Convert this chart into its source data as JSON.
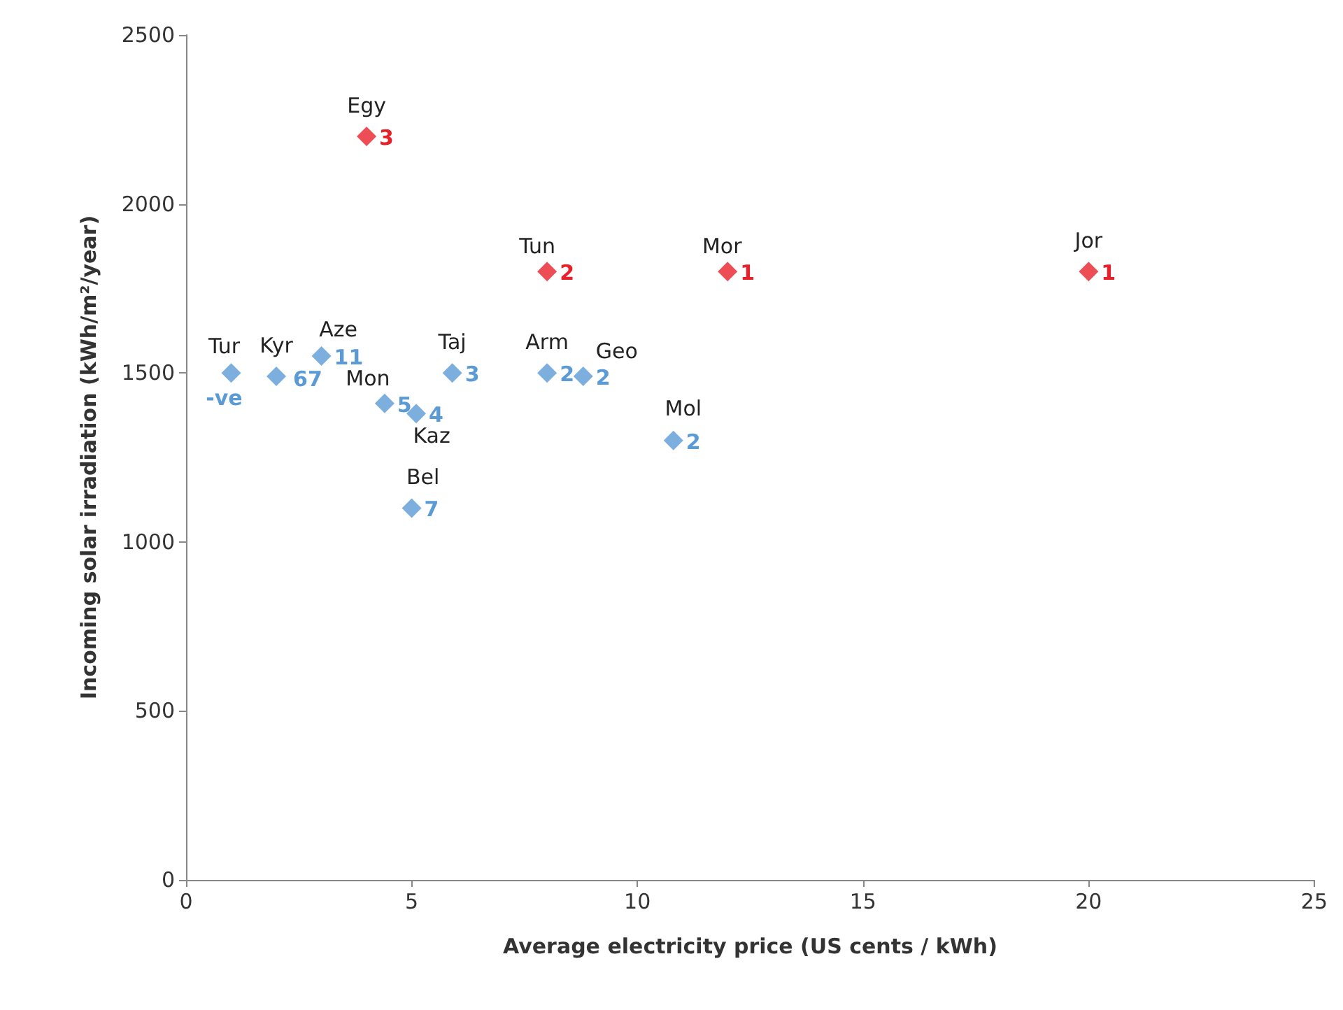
{
  "chart_data": {
    "type": "scatter",
    "xlabel": "Average electricity price (US cents / kWh)",
    "ylabel": "Incoming solar irradiation (kWh/m²/year)",
    "xlim": [
      0,
      25
    ],
    "xticks": [
      0,
      5,
      10,
      15,
      20,
      25
    ],
    "ylim": [
      0,
      2500
    ],
    "yticks": [
      0,
      500,
      1000,
      1500,
      2000,
      2500
    ],
    "grid": false,
    "marker": "diamond",
    "series": [
      {
        "color": "#e8202a",
        "x": [
          4,
          8,
          12,
          20
        ],
        "values": [
          2200,
          1800,
          1800,
          1800
        ]
      },
      {
        "color": "#5b9bd5",
        "x": [
          1,
          2,
          3,
          4.4,
          5.1,
          5.9,
          8,
          8.8,
          10.8,
          5
        ],
        "values": [
          1500,
          1490,
          1550,
          1410,
          1380,
          1500,
          1500,
          1490,
          1300,
          1100
        ]
      }
    ],
    "annotations": [
      {
        "text": "Egy",
        "x": 4,
        "y": 2200
      },
      {
        "text": "3",
        "x": 4,
        "y": 2200
      },
      {
        "text": "Tun",
        "x": 8,
        "y": 1800
      },
      {
        "text": "2",
        "x": 8,
        "y": 1800
      },
      {
        "text": "Mor",
        "x": 12,
        "y": 1800
      },
      {
        "text": "1",
        "x": 12,
        "y": 1800
      },
      {
        "text": "Jor",
        "x": 20,
        "y": 1800
      },
      {
        "text": "1",
        "x": 20,
        "y": 1800
      },
      {
        "text": "Tur",
        "x": 1,
        "y": 1500
      },
      {
        "text": "-ve",
        "x": 1,
        "y": 1500
      },
      {
        "text": "Kyr",
        "x": 2,
        "y": 1490
      },
      {
        "text": "67",
        "x": 2,
        "y": 1490
      },
      {
        "text": "Aze",
        "x": 3,
        "y": 1550
      },
      {
        "text": "11",
        "x": 3,
        "y": 1550
      },
      {
        "text": "Mon",
        "x": 4.4,
        "y": 1410
      },
      {
        "text": "5",
        "x": 4.4,
        "y": 1410
      },
      {
        "text": "Kaz",
        "x": 5.1,
        "y": 1380
      },
      {
        "text": "4",
        "x": 5.1,
        "y": 1380
      },
      {
        "text": "Taj",
        "x": 5.9,
        "y": 1500
      },
      {
        "text": "3",
        "x": 5.9,
        "y": 1500
      },
      {
        "text": "Arm",
        "x": 8,
        "y": 1500
      },
      {
        "text": "2",
        "x": 8,
        "y": 1500
      },
      {
        "text": "Geo",
        "x": 8.8,
        "y": 1490
      },
      {
        "text": "2",
        "x": 8.8,
        "y": 1490
      },
      {
        "text": "Mol",
        "x": 10.8,
        "y": 1300
      },
      {
        "text": "2",
        "x": 10.8,
        "y": 1300
      },
      {
        "text": "Bel",
        "x": 5,
        "y": 1100
      },
      {
        "text": "7",
        "x": 5,
        "y": 1100
      }
    ]
  }
}
